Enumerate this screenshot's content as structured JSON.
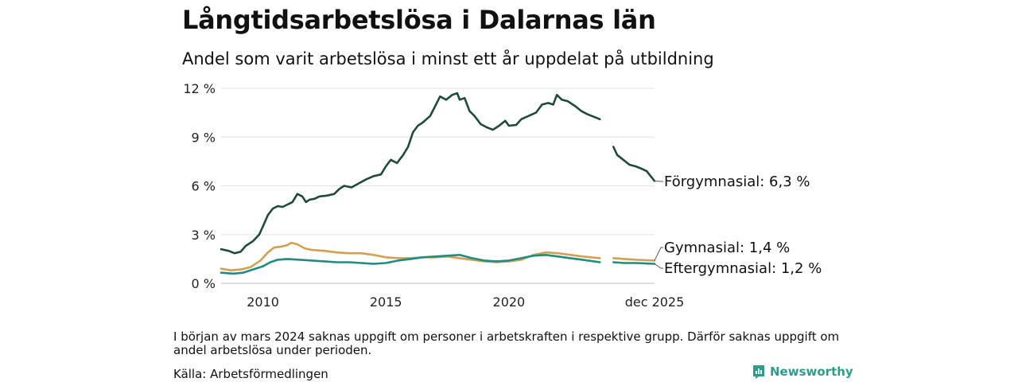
{
  "header": {
    "title": "Långtidsarbetslösa i Dalarnas län",
    "subtitle": "Andel som varit arbetslösa i minst ett år uppdelat på utbildning"
  },
  "footer": {
    "note": "I början av mars 2024 saknas uppgift om personer i arbetskraften i respektive grupp. Därför saknas uppgift om andel arbetslösa under perioden.",
    "source": "Källa: Arbetsförmedlingen",
    "brand": "Newsworthy",
    "brand_color": "#2b9e8b"
  },
  "chart_data": {
    "type": "line",
    "title": "Långtidsarbetslösa i Dalarnas län",
    "xlabel": "",
    "ylabel": "",
    "xlim": [
      2008.3,
      2025.92
    ],
    "ylim": [
      0,
      12
    ],
    "yticks": [
      0,
      3,
      6,
      9,
      12
    ],
    "ytick_labels": [
      "0 %",
      "3 %",
      "6 %",
      "9 %",
      "12 %"
    ],
    "xticks": [
      2010,
      2015,
      2020,
      2025.92
    ],
    "xtick_labels": [
      "2010",
      "2015",
      "2020",
      "dec 2025"
    ],
    "grid": true,
    "gap": [
      2023.7,
      2024.25
    ],
    "series": [
      {
        "name": "Förgymnasial",
        "end_label": "Förgymnasial: 6,3 %",
        "color": "#1f4a3c",
        "points": [
          [
            2008.3,
            2.1
          ],
          [
            2008.6,
            2.0
          ],
          [
            2008.85,
            1.85
          ],
          [
            2009.1,
            1.95
          ],
          [
            2009.3,
            2.3
          ],
          [
            2009.6,
            2.6
          ],
          [
            2009.85,
            3.0
          ],
          [
            2010.0,
            3.5
          ],
          [
            2010.2,
            4.2
          ],
          [
            2010.4,
            4.6
          ],
          [
            2010.6,
            4.75
          ],
          [
            2010.8,
            4.7
          ],
          [
            2011.0,
            4.85
          ],
          [
            2011.2,
            5.0
          ],
          [
            2011.4,
            5.5
          ],
          [
            2011.6,
            5.35
          ],
          [
            2011.75,
            5.0
          ],
          [
            2011.9,
            5.15
          ],
          [
            2012.1,
            5.2
          ],
          [
            2012.3,
            5.35
          ],
          [
            2012.6,
            5.4
          ],
          [
            2012.9,
            5.5
          ],
          [
            2013.1,
            5.8
          ],
          [
            2013.3,
            6.0
          ],
          [
            2013.6,
            5.9
          ],
          [
            2013.9,
            6.15
          ],
          [
            2014.2,
            6.4
          ],
          [
            2014.5,
            6.6
          ],
          [
            2014.8,
            6.7
          ],
          [
            2015.0,
            7.2
          ],
          [
            2015.2,
            7.6
          ],
          [
            2015.45,
            7.4
          ],
          [
            2015.7,
            7.9
          ],
          [
            2015.9,
            8.4
          ],
          [
            2016.1,
            9.3
          ],
          [
            2016.3,
            9.7
          ],
          [
            2016.5,
            9.9
          ],
          [
            2016.8,
            10.3
          ],
          [
            2017.0,
            10.9
          ],
          [
            2017.2,
            11.5
          ],
          [
            2017.45,
            11.3
          ],
          [
            2017.7,
            11.6
          ],
          [
            2017.9,
            11.7
          ],
          [
            2018.0,
            11.3
          ],
          [
            2018.2,
            11.4
          ],
          [
            2018.4,
            10.6
          ],
          [
            2018.6,
            10.3
          ],
          [
            2018.85,
            9.8
          ],
          [
            2019.1,
            9.6
          ],
          [
            2019.35,
            9.45
          ],
          [
            2019.6,
            9.7
          ],
          [
            2019.85,
            10.0
          ],
          [
            2020.0,
            9.7
          ],
          [
            2020.3,
            9.75
          ],
          [
            2020.5,
            10.1
          ],
          [
            2020.8,
            10.3
          ],
          [
            2021.1,
            10.5
          ],
          [
            2021.35,
            11.0
          ],
          [
            2021.6,
            11.1
          ],
          [
            2021.8,
            11.0
          ],
          [
            2021.95,
            11.6
          ],
          [
            2022.15,
            11.3
          ],
          [
            2022.4,
            11.2
          ],
          [
            2022.7,
            10.9
          ],
          [
            2022.95,
            10.6
          ],
          [
            2023.2,
            10.4
          ],
          [
            2023.45,
            10.25
          ],
          [
            2023.7,
            10.1
          ],
          [
            2024.25,
            8.4
          ],
          [
            2024.4,
            7.9
          ],
          [
            2024.65,
            7.6
          ],
          [
            2024.9,
            7.3
          ],
          [
            2025.15,
            7.2
          ],
          [
            2025.4,
            7.05
          ],
          [
            2025.6,
            6.9
          ],
          [
            2025.92,
            6.3
          ]
        ]
      },
      {
        "name": "Gymnasial",
        "end_label": "Gymnasial: 1,4 %",
        "color": "#d4a050",
        "points": [
          [
            2008.3,
            0.9
          ],
          [
            2008.7,
            0.8
          ],
          [
            2009.1,
            0.85
          ],
          [
            2009.5,
            1.0
          ],
          [
            2009.9,
            1.4
          ],
          [
            2010.2,
            1.9
          ],
          [
            2010.45,
            2.2
          ],
          [
            2010.7,
            2.25
          ],
          [
            2011.0,
            2.35
          ],
          [
            2011.15,
            2.5
          ],
          [
            2011.4,
            2.4
          ],
          [
            2011.7,
            2.15
          ],
          [
            2012.0,
            2.05
          ],
          [
            2012.5,
            2.0
          ],
          [
            2013.0,
            1.9
          ],
          [
            2013.5,
            1.85
          ],
          [
            2014.0,
            1.85
          ],
          [
            2014.5,
            1.75
          ],
          [
            2015.0,
            1.6
          ],
          [
            2015.5,
            1.55
          ],
          [
            2016.0,
            1.55
          ],
          [
            2016.5,
            1.6
          ],
          [
            2017.0,
            1.6
          ],
          [
            2017.5,
            1.65
          ],
          [
            2018.0,
            1.55
          ],
          [
            2018.5,
            1.45
          ],
          [
            2019.0,
            1.35
          ],
          [
            2019.5,
            1.3
          ],
          [
            2020.0,
            1.35
          ],
          [
            2020.5,
            1.45
          ],
          [
            2021.0,
            1.75
          ],
          [
            2021.5,
            1.9
          ],
          [
            2022.0,
            1.85
          ],
          [
            2022.5,
            1.75
          ],
          [
            2023.0,
            1.65
          ],
          [
            2023.7,
            1.55
          ],
          [
            2024.25,
            1.55
          ],
          [
            2024.7,
            1.5
          ],
          [
            2025.2,
            1.45
          ],
          [
            2025.6,
            1.42
          ],
          [
            2025.92,
            1.4
          ]
        ]
      },
      {
        "name": "Eftergymnasial",
        "end_label": "Eftergymnasial: 1,2 %",
        "color": "#1e8c80",
        "points": [
          [
            2008.3,
            0.65
          ],
          [
            2008.8,
            0.6
          ],
          [
            2009.2,
            0.65
          ],
          [
            2009.6,
            0.85
          ],
          [
            2010.0,
            1.05
          ],
          [
            2010.3,
            1.3
          ],
          [
            2010.6,
            1.45
          ],
          [
            2011.0,
            1.5
          ],
          [
            2011.5,
            1.45
          ],
          [
            2012.0,
            1.4
          ],
          [
            2012.5,
            1.35
          ],
          [
            2013.0,
            1.3
          ],
          [
            2013.5,
            1.3
          ],
          [
            2014.0,
            1.25
          ],
          [
            2014.5,
            1.2
          ],
          [
            2015.0,
            1.25
          ],
          [
            2015.5,
            1.4
          ],
          [
            2016.0,
            1.5
          ],
          [
            2016.5,
            1.6
          ],
          [
            2017.0,
            1.65
          ],
          [
            2017.5,
            1.7
          ],
          [
            2018.0,
            1.75
          ],
          [
            2018.5,
            1.55
          ],
          [
            2019.0,
            1.4
          ],
          [
            2019.5,
            1.35
          ],
          [
            2020.0,
            1.4
          ],
          [
            2020.5,
            1.55
          ],
          [
            2021.0,
            1.7
          ],
          [
            2021.5,
            1.75
          ],
          [
            2022.0,
            1.65
          ],
          [
            2022.5,
            1.55
          ],
          [
            2023.0,
            1.45
          ],
          [
            2023.7,
            1.3
          ],
          [
            2024.25,
            1.3
          ],
          [
            2024.7,
            1.25
          ],
          [
            2025.2,
            1.25
          ],
          [
            2025.6,
            1.22
          ],
          [
            2025.92,
            1.2
          ]
        ]
      }
    ]
  }
}
